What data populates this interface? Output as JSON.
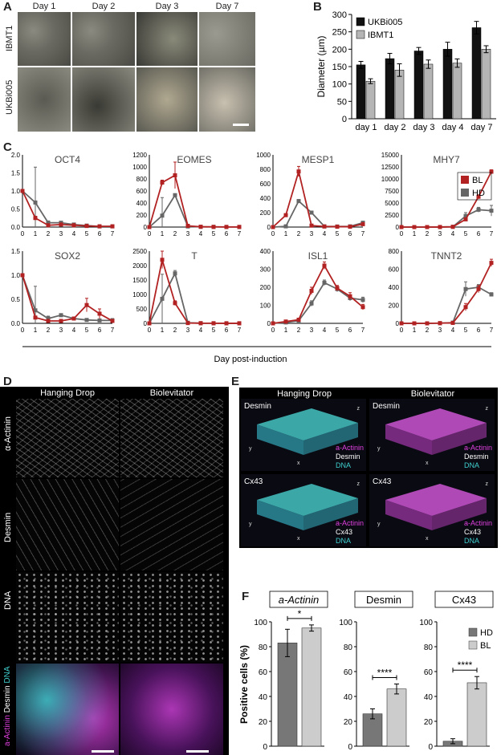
{
  "panels": {
    "A": {
      "label": "A",
      "columns": [
        "Day 1",
        "Day 2",
        "Day 3",
        "Day 7"
      ],
      "rows": [
        "IBMT1",
        "UKBi005"
      ]
    },
    "B": {
      "label": "B"
    },
    "C": {
      "label": "C",
      "xlabel": "Day post-induction"
    },
    "D": {
      "label": "D",
      "columns": [
        "Hanging Drop",
        "Biolevitator"
      ],
      "rows": [
        "α-Actinin",
        "Desmin",
        "DNA"
      ],
      "merge_row_label": {
        "p1": "a-Actinin",
        "p2": "Desmin",
        "p3": "DNA"
      }
    },
    "E": {
      "label": "E",
      "columns": [
        "Hanging Drop",
        "Biolevitator"
      ],
      "rows": [
        "Desmin",
        "Cx43"
      ],
      "legend_a": "a-Actinin",
      "legend_desmin": "Desmin",
      "legend_cx43": "Cx43",
      "legend_dna": "DNA",
      "axis_z": "z",
      "axis_um": "(µm)",
      "axis_x": "x",
      "axis_y": "y"
    },
    "F": {
      "label": "F",
      "ylabel": "Positive cells (%)"
    }
  },
  "colors": {
    "bl": "#b22222",
    "hd": "#666666",
    "ukb": "#111111",
    "ibmt": "#b5b5b5",
    "hd_bar": "#777777",
    "bl_bar": "#cccccc"
  },
  "chart_data": [
    {
      "id": "B",
      "type": "bar",
      "categories": [
        "day 1",
        "day 2",
        "day 3",
        "day 4",
        "day 7"
      ],
      "series": [
        {
          "name": "UKBi005",
          "values": [
            155,
            173,
            195,
            200,
            262
          ],
          "errors": [
            10,
            15,
            10,
            20,
            18
          ]
        },
        {
          "name": "IBMT1",
          "values": [
            108,
            140,
            157,
            160,
            200
          ],
          "errors": [
            7,
            18,
            12,
            12,
            10
          ]
        }
      ],
      "ylabel": "Diameter (µm)",
      "ylim": [
        0,
        300
      ],
      "yticks": [
        0,
        50,
        100,
        150,
        200,
        250,
        300
      ],
      "legend": "top-left"
    },
    {
      "id": "C-OCT4",
      "type": "line",
      "title": "OCT4",
      "x": [
        0,
        1,
        2,
        3,
        4,
        5,
        6,
        7
      ],
      "ylim": [
        0,
        2
      ],
      "yticks": [
        "0.0",
        "0.5",
        "1.0",
        "1.5",
        "2.0"
      ],
      "series": [
        {
          "name": "BL",
          "values": [
            1.0,
            0.25,
            0.05,
            0.07,
            0.05,
            0.03,
            0.02,
            0.02
          ],
          "errors": [
            0,
            0.05,
            0.02,
            0.02,
            0.01,
            0.01,
            0.01,
            0.01
          ]
        },
        {
          "name": "HD",
          "values": [
            1.0,
            0.68,
            0.12,
            0.12,
            0.07,
            0.04,
            0.02,
            0.02
          ],
          "errors": [
            0,
            0.98,
            0.05,
            0.03,
            0.02,
            0.01,
            0.01,
            0.01
          ]
        }
      ]
    },
    {
      "id": "C-EOMES",
      "type": "line",
      "title": "EOMES",
      "x": [
        0,
        1,
        2,
        3,
        4,
        5,
        6,
        7
      ],
      "ylim": [
        0,
        1200
      ],
      "yticks": [
        "0",
        "200",
        "400",
        "600",
        "800",
        "1000",
        "1200"
      ],
      "series": [
        {
          "name": "BL",
          "values": [
            0,
            740,
            860,
            20,
            5,
            3,
            2,
            2
          ],
          "errors": [
            0,
            40,
            220,
            10,
            3,
            2,
            1,
            1
          ]
        },
        {
          "name": "HD",
          "values": [
            0,
            190,
            530,
            10,
            4,
            3,
            2,
            2
          ],
          "errors": [
            0,
            300,
            20,
            5,
            2,
            1,
            1,
            1
          ]
        }
      ]
    },
    {
      "id": "C-MESP1",
      "type": "line",
      "title": "MESP1",
      "x": [
        0,
        1,
        2,
        3,
        4,
        5,
        6,
        7
      ],
      "ylim": [
        0,
        1000
      ],
      "yticks": [
        "0",
        "200",
        "400",
        "600",
        "800",
        "1000"
      ],
      "series": [
        {
          "name": "BL",
          "values": [
            0,
            165,
            770,
            20,
            8,
            5,
            5,
            40
          ],
          "errors": [
            0,
            15,
            70,
            10,
            4,
            3,
            3,
            10
          ]
        },
        {
          "name": "HD",
          "values": [
            0,
            10,
            360,
            200,
            10,
            8,
            10,
            60
          ],
          "errors": [
            0,
            5,
            20,
            20,
            5,
            4,
            5,
            10
          ]
        }
      ]
    },
    {
      "id": "C-MHY7",
      "type": "line",
      "title": "MHY7",
      "x": [
        0,
        1,
        2,
        3,
        4,
        5,
        6,
        7
      ],
      "ylim": [
        0,
        15000
      ],
      "yticks": [
        "0",
        "2500",
        "5000",
        "7500",
        "10000",
        "12500",
        "15000"
      ],
      "series": [
        {
          "name": "BL",
          "values": [
            0,
            0,
            0,
            10,
            50,
            1600,
            6300,
            11500
          ],
          "errors": [
            0,
            0,
            0,
            5,
            20,
            300,
            400,
            400
          ]
        },
        {
          "name": "HD",
          "values": [
            0,
            0,
            0,
            10,
            50,
            2300,
            3600,
            3400
          ],
          "errors": [
            0,
            0,
            0,
            5,
            20,
            700,
            500,
            1100
          ]
        }
      ]
    },
    {
      "id": "C-SOX2",
      "type": "line",
      "title": "SOX2",
      "x": [
        0,
        1,
        2,
        3,
        4,
        5,
        6,
        7
      ],
      "ylim": [
        0,
        1.5
      ],
      "yticks": [
        "0.0",
        "0.5",
        "1.0",
        "1.5"
      ],
      "series": [
        {
          "name": "BL",
          "values": [
            1.0,
            0.12,
            0.05,
            0.05,
            0.1,
            0.38,
            0.2,
            0.05
          ],
          "errors": [
            0,
            0.03,
            0.02,
            0.02,
            0.03,
            0.14,
            0.1,
            0.02
          ]
        },
        {
          "name": "HD",
          "values": [
            1.0,
            0.27,
            0.1,
            0.17,
            0.1,
            0.07,
            0.06,
            0.06
          ],
          "errors": [
            0,
            0.5,
            0.05,
            0.02,
            0.02,
            0.02,
            0.02,
            0.04
          ]
        }
      ]
    },
    {
      "id": "C-T",
      "type": "line",
      "title": "T",
      "x": [
        0,
        1,
        2,
        3,
        4,
        5,
        6,
        7
      ],
      "ylim": [
        0,
        2500
      ],
      "yticks": [
        "0",
        "500",
        "1000",
        "1500",
        "2000",
        "2500"
      ],
      "series": [
        {
          "name": "BL",
          "values": [
            0,
            2200,
            700,
            10,
            5,
            3,
            2,
            2
          ],
          "errors": [
            0,
            300,
            80,
            5,
            3,
            2,
            1,
            1
          ]
        },
        {
          "name": "HD",
          "values": [
            0,
            850,
            1730,
            20,
            5,
            3,
            2,
            2
          ],
          "errors": [
            0,
            850,
            100,
            10,
            3,
            2,
            1,
            1
          ]
        }
      ]
    },
    {
      "id": "C-ISL1",
      "type": "line",
      "title": "ISL1",
      "x": [
        0,
        1,
        2,
        3,
        4,
        5,
        6,
        7
      ],
      "ylim": [
        0,
        400
      ],
      "yticks": [
        "0",
        "100",
        "200",
        "300",
        "400"
      ],
      "series": [
        {
          "name": "BL",
          "values": [
            0,
            10,
            20,
            180,
            320,
            195,
            150,
            90
          ],
          "errors": [
            0,
            3,
            5,
            20,
            20,
            15,
            20,
            15
          ]
        },
        {
          "name": "HD",
          "values": [
            0,
            5,
            15,
            110,
            225,
            190,
            140,
            130
          ],
          "errors": [
            0,
            3,
            5,
            15,
            15,
            15,
            15,
            15
          ]
        }
      ]
    },
    {
      "id": "C-TNNT2",
      "type": "line",
      "title": "TNNT2",
      "x": [
        0,
        1,
        2,
        3,
        4,
        5,
        6,
        7
      ],
      "ylim": [
        0,
        800
      ],
      "yticks": [
        "0",
        "200",
        "400",
        "600",
        "800"
      ],
      "series": [
        {
          "name": "BL",
          "values": [
            0,
            0,
            0,
            2,
            5,
            180,
            380,
            670
          ],
          "errors": [
            0,
            0,
            0,
            1,
            2,
            40,
            40,
            40
          ]
        },
        {
          "name": "HD",
          "values": [
            0,
            0,
            0,
            2,
            8,
            380,
            400,
            320
          ],
          "errors": [
            0,
            0,
            0,
            1,
            3,
            80,
            30,
            20
          ]
        }
      ]
    },
    {
      "id": "F-aActinin",
      "type": "bar",
      "title": "a-Actinin",
      "categories": [
        "HD",
        "BL"
      ],
      "values": [
        83,
        95
      ],
      "errors": [
        11,
        2.5
      ],
      "ylim": [
        0,
        100
      ],
      "yticks": [
        0,
        20,
        40,
        60,
        80,
        100
      ],
      "significance": "*"
    },
    {
      "id": "F-Desmin",
      "type": "bar",
      "title": "Desmin",
      "categories": [
        "HD",
        "BL"
      ],
      "values": [
        26,
        46
      ],
      "errors": [
        4,
        4
      ],
      "ylim": [
        0,
        100
      ],
      "yticks": [
        0,
        20,
        40,
        60,
        80,
        100
      ],
      "significance": "****"
    },
    {
      "id": "F-Cx43",
      "type": "bar",
      "title": "Cx43",
      "categories": [
        "HD",
        "BL"
      ],
      "values": [
        4,
        51
      ],
      "errors": [
        2,
        5
      ],
      "ylim": [
        0,
        100
      ],
      "yticks": [
        0,
        20,
        40,
        60,
        80,
        100
      ],
      "significance": "****",
      "legend": "top-right"
    }
  ]
}
